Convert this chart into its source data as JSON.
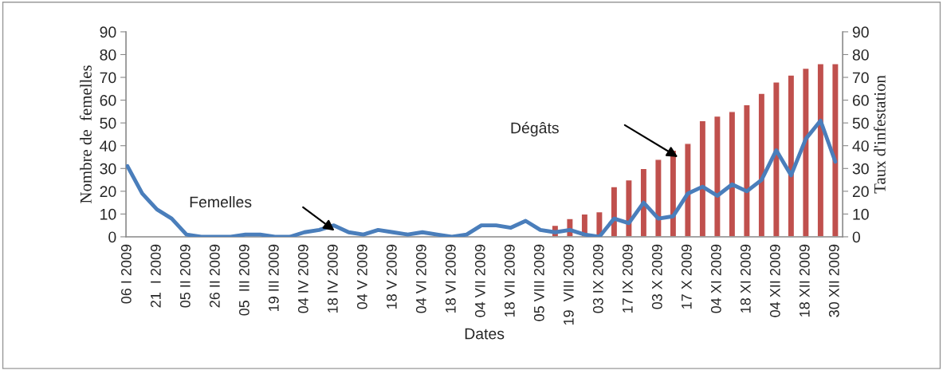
{
  "chart_data": {
    "type": "line",
    "xlabel": "Dates",
    "ylabel": "Nombre de  femelles",
    "y2label": "Taux d'infestation",
    "categories": [
      "06 I 2009",
      null,
      "21  I 2009",
      null,
      "05 II 2009",
      null,
      "26 II 2009",
      null,
      "05  III 2009",
      null,
      "19 III 2009",
      null,
      "04 IV 2009",
      null,
      "18 IV 2009",
      null,
      "04 V 2009",
      null,
      "18 V 2009",
      null,
      "04 VI 2009",
      null,
      "18 VI 2009",
      null,
      "04 VII 2009",
      null,
      "18 VII 2009",
      null,
      "05 VIII 2009",
      null,
      "19  VIII 2009",
      null,
      "03 IX 2009",
      null,
      "17 IX 2009",
      null,
      "03 X 2009",
      null,
      "17 X 2009",
      null,
      "04 XI 2009",
      null,
      "18 XI 2009",
      null,
      "04 XII 2009",
      null,
      "18 XII 2009",
      null,
      "30 XII 2009"
    ],
    "series": [
      {
        "type": "bar",
        "axis": "y2",
        "color": "#c0504d",
        "values": [
          null,
          null,
          null,
          null,
          null,
          null,
          null,
          null,
          null,
          null,
          null,
          null,
          null,
          null,
          null,
          null,
          null,
          null,
          null,
          null,
          null,
          null,
          null,
          null,
          null,
          null,
          null,
          null,
          null,
          5,
          8,
          10,
          11,
          22,
          25,
          30,
          34,
          38,
          41,
          51,
          53,
          55,
          58,
          63,
          68,
          71,
          74,
          76,
          76
        ]
      },
      {
        "color": "#4a7ebb",
        "values": [
          31,
          19,
          12,
          8,
          1,
          0,
          0,
          0,
          1,
          1,
          0,
          0,
          2,
          3,
          5,
          2,
          1,
          3,
          2,
          1,
          2,
          1,
          0,
          1,
          5,
          5,
          4,
          7,
          3,
          2,
          3,
          1,
          0,
          8,
          6,
          15,
          8,
          9,
          19,
          22,
          18,
          23,
          20,
          25,
          38,
          27,
          43,
          51,
          33
        ]
      }
    ],
    "ylim": [
      0,
      90
    ],
    "yticks": [
      0,
      10,
      20,
      30,
      40,
      50,
      60,
      70,
      80,
      90
    ],
    "y2lim": [
      0,
      90
    ],
    "y2ticks": [
      0,
      10,
      20,
      30,
      40,
      50,
      60,
      70,
      80,
      90
    ],
    "annotations": [
      "Femelles",
      "Dégâts"
    ],
    "grid": false,
    "legend": false
  }
}
